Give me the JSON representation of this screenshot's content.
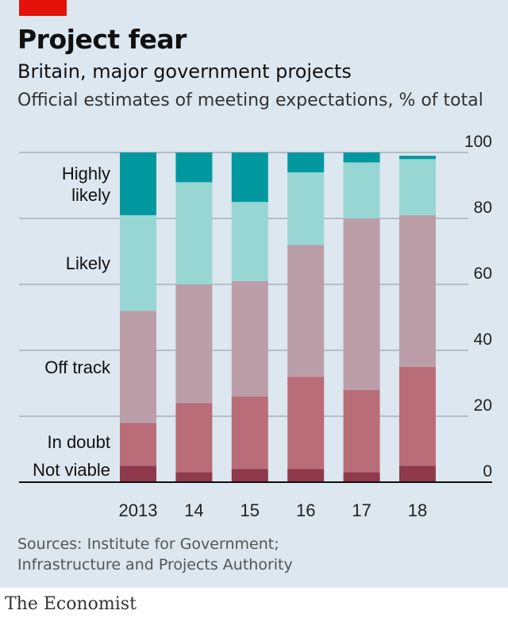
{
  "header": {
    "title": "Project fear",
    "subtitle": "Britain, major government projects",
    "subtitle2": "Official estimates of meeting expectations, % of total"
  },
  "sources": [
    "Sources: Institute for Government;",
    "Infrastructure and Projects Authority"
  ],
  "brand": "The Economist",
  "colors": {
    "panel_bg": "#dce7ef",
    "accent_red": "#e3120b",
    "not_viable": "#8e3a4c",
    "in_doubt": "#b96d78",
    "off_track": "#bb9ea8",
    "likely": "#98d6d3",
    "highly_likely": "#00989e"
  },
  "chart_data": {
    "type": "bar",
    "stacked": true,
    "categories": [
      "2013",
      "14",
      "15",
      "16",
      "17",
      "18"
    ],
    "series": [
      {
        "name": "Not viable",
        "color": "#8e3a4c",
        "values": [
          5,
          3,
          4,
          4,
          3,
          5
        ]
      },
      {
        "name": "In doubt",
        "color": "#b96d78",
        "values": [
          13,
          21,
          22,
          28,
          25,
          30
        ]
      },
      {
        "name": "Off track",
        "color": "#bb9ea8",
        "values": [
          34,
          36,
          35,
          40,
          52,
          46
        ]
      },
      {
        "name": "Likely",
        "color": "#98d6d3",
        "values": [
          29,
          31,
          24,
          22,
          17,
          17
        ]
      },
      {
        "name": "Highly likely",
        "color": "#00989e",
        "values": [
          19,
          9,
          15,
          6,
          3,
          1
        ]
      }
    ],
    "legend_labels": [
      {
        "lines": [
          "Highly",
          "likely"
        ]
      },
      {
        "lines": [
          "Likely"
        ]
      },
      {
        "lines": [
          "Off track"
        ]
      },
      {
        "lines": [
          "In doubt"
        ]
      },
      {
        "lines": [
          "Not viable"
        ]
      }
    ],
    "yticks": [
      0,
      20,
      40,
      60,
      80,
      100
    ],
    "ylim": [
      0,
      100
    ],
    "yaxis_side": "right",
    "grid": true,
    "xlabel": "",
    "ylabel": ""
  }
}
